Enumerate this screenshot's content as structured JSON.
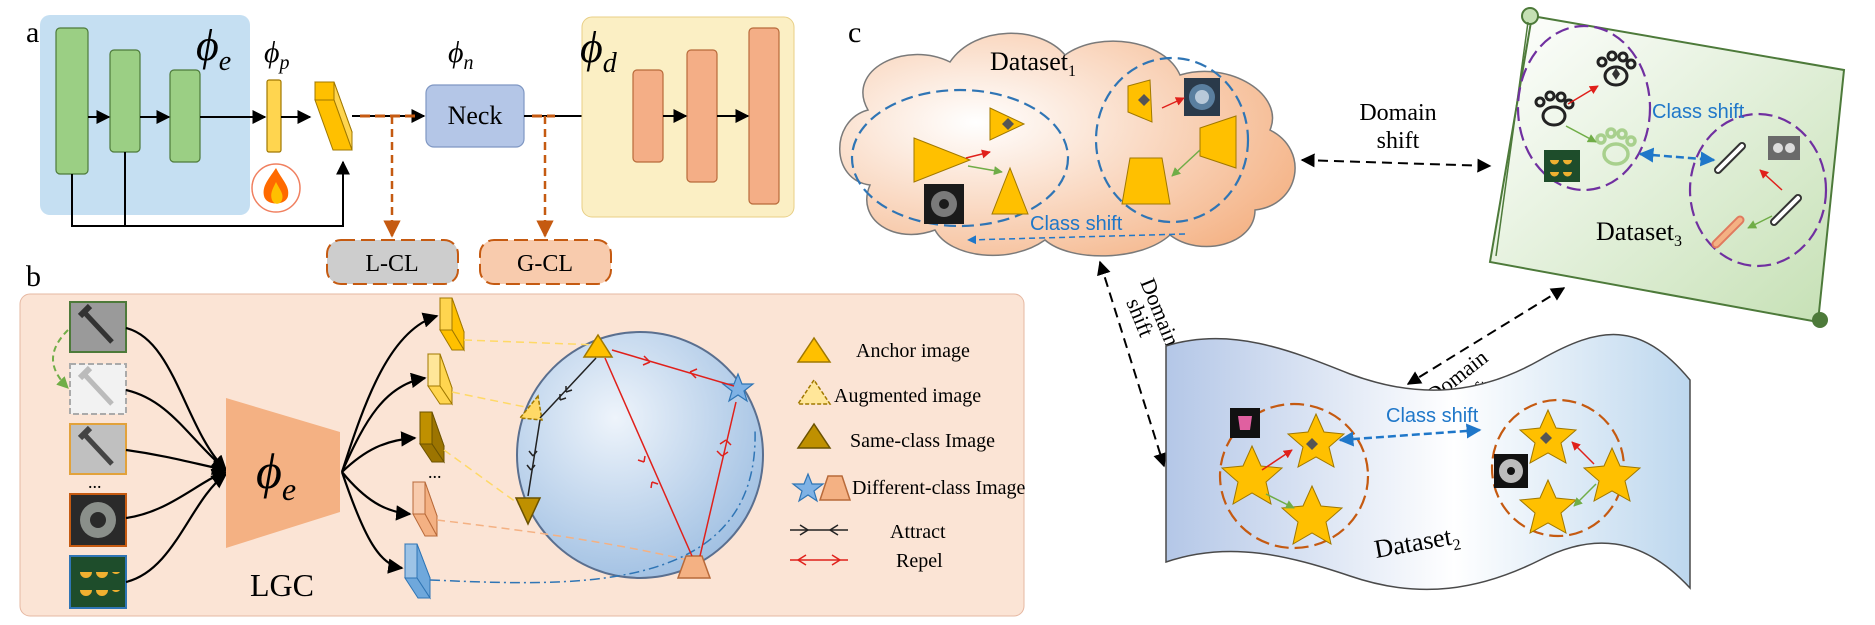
{
  "panels": {
    "a": {
      "label": "a",
      "encoder_symbol": "ϕ",
      "encoder_sub": "e",
      "prompt_symbol": "ϕ",
      "prompt_sub": "p",
      "neck_symbol": "ϕ",
      "neck_sub": "n",
      "neck_label": "Neck",
      "decoder_symbol": "ϕ",
      "decoder_sub": "d",
      "lcl_label": "L-CL",
      "gcl_label": "G-CL",
      "flame_icon": "flame-icon",
      "colors": {
        "encoder_bg": "#c5dff2",
        "encoder_block": "#9bcf84",
        "decoder_bg": "#fbefc4",
        "decoder_block": "#f4ae86",
        "prompt_block": "#ffd54f",
        "neck": "#b4c6e7",
        "lcl_fill": "#cdcdcd",
        "gcl_fill": "#f8cbad",
        "dash": "#c55a11"
      }
    },
    "b": {
      "label": "b",
      "encoder_symbol": "ϕ",
      "encoder_sub": "e",
      "lgc_label": "LGC",
      "ellipsis_left": "...",
      "ellipsis_mid": "...",
      "legend": [
        {
          "shape": "triangle-solid",
          "label": "Anchor image"
        },
        {
          "shape": "triangle-dashed",
          "label": "Augmented image"
        },
        {
          "shape": "triangle-dark",
          "label": "Same-class Image"
        },
        {
          "shape": "star-trapezoid",
          "label": "Different-class Image"
        },
        {
          "shape": "attract-arrow",
          "label": "Attract"
        },
        {
          "shape": "repel-arrow",
          "label": "Repel"
        }
      ],
      "colors": {
        "bg": "#fbe4d5",
        "sphere": "#bdd7ee",
        "attract": "#222222",
        "repel": "#e0201b"
      }
    },
    "c": {
      "label": "c",
      "dataset1": {
        "name": "Dataset",
        "sub": "1"
      },
      "dataset2": {
        "name": "Dataset",
        "sub": "2"
      },
      "dataset3": {
        "name": "Dataset",
        "sub": "3"
      },
      "class_shift_1": "Class shift",
      "class_shift_2": "Class shift",
      "class_shift_3": "Class shift",
      "domain_shift_top": [
        "Domain",
        "shift"
      ],
      "domain_shift_left": [
        "Domain",
        "shift"
      ],
      "domain_shift_right": [
        "Domain",
        "shift"
      ],
      "colors": {
        "cloud": "#f8cbad",
        "scroll": "#e2f0d9",
        "wave": "#c9d9ee",
        "shape": "#ffc000",
        "class_shift": "#1f77c9"
      }
    }
  }
}
